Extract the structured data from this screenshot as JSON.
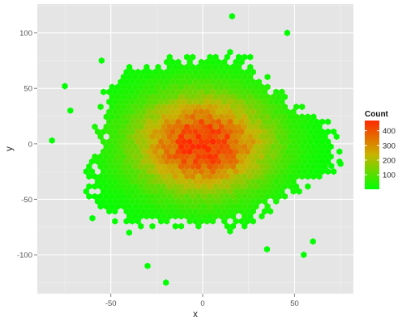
{
  "chart_data": {
    "type": "heatmap",
    "subtype": "hexbin",
    "title": "",
    "xlabel": "x",
    "ylabel": "y",
    "xlim": [
      -90,
      82
    ],
    "ylim": [
      -135,
      126
    ],
    "x_ticks": [
      -50,
      0,
      50
    ],
    "x_tick_labels": [
      "-50",
      "0",
      "50"
    ],
    "y_ticks": [
      -100,
      -50,
      0,
      50,
      100
    ],
    "y_tick_labels": [
      "-100",
      "-50",
      "0",
      "50",
      "100"
    ],
    "grid": true,
    "legend": {
      "title": "Count",
      "placement": "right",
      "min": 1,
      "max": 470,
      "ticks": [
        100,
        200,
        300,
        400
      ],
      "tick_labels": [
        "100",
        "200",
        "300",
        "400"
      ],
      "color_low": "#00ff00",
      "color_mid": "#c8b400",
      "color_high": "#ff2a00"
    },
    "distribution": {
      "center": [
        0,
        0
      ],
      "sd_x": 25,
      "sd_y": 30,
      "peak_count": 460,
      "peak_location": [
        3,
        -5
      ]
    },
    "outliers": [
      [
        -75,
        52
      ],
      [
        -60,
        -67
      ],
      [
        -30,
        -110
      ],
      [
        -20,
        -125
      ],
      [
        16,
        115
      ],
      [
        46,
        100
      ],
      [
        70,
        -20
      ],
      [
        75,
        -18
      ],
      [
        -82,
        3
      ],
      [
        -72,
        30
      ],
      [
        60,
        -88
      ],
      [
        55,
        -100
      ],
      [
        -40,
        -80
      ],
      [
        35,
        -95
      ],
      [
        -55,
        75
      ]
    ],
    "colors": {
      "panel_background": "#e5e5e5",
      "gridline_major": "#ffffff",
      "gridline_minor": "#f2f2f2"
    }
  }
}
